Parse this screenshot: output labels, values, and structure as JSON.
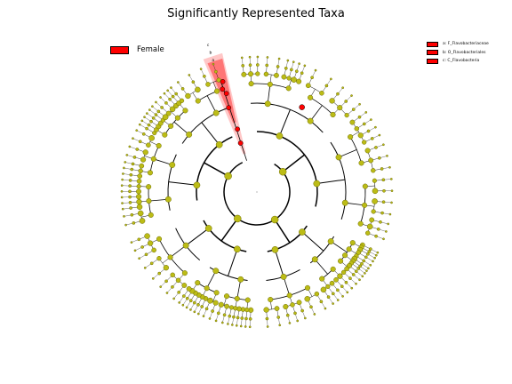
{
  "title": "Significantly Represented Taxa",
  "colors": {
    "node": "#bcbc16",
    "node_edge": "#6b6b00",
    "highlight": "#ff0000",
    "clade_fill": "#ff9999"
  },
  "legend_group": {
    "label": "Female",
    "color": "#ff0000"
  },
  "legend_taxa": [
    {
      "label": "a: F_Flavobacteriaceae",
      "color": "#ff0000"
    },
    {
      "label": "b: O_Flavobacteriales",
      "color": "#ff0000"
    },
    {
      "label": "c: C_Flavobacteria",
      "color": "#ff0000"
    }
  ],
  "clade_marks": [
    "c",
    "b",
    "a"
  ]
}
